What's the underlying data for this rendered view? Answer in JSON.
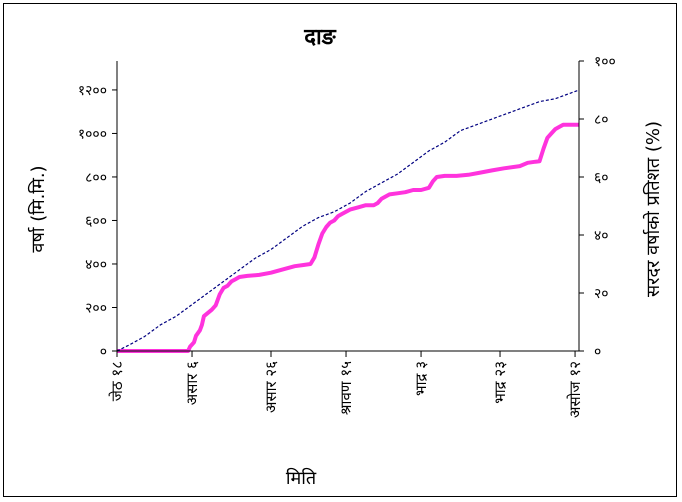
{
  "chart_data": {
    "type": "line",
    "title": "दाङ",
    "xlabel": "मिति",
    "ylabel_left": "वर्षा (मि.मि.)",
    "ylabel_right": "सरदर वर्षाको प्रतिशत (%)",
    "x_tick_labels": [
      "जेठ १८",
      "असार ६",
      "असार २६",
      "श्रावण १५",
      "भाद्र ३",
      "भाद्र २३",
      "असोज १२"
    ],
    "x_tick_day_offsets": [
      0,
      19,
      39,
      58,
      77,
      97,
      116
    ],
    "y_left": {
      "min": 0,
      "max": 1333,
      "ticks": [
        0,
        200,
        400,
        600,
        800,
        1000,
        1200
      ],
      "tick_labels": [
        "०",
        "२००",
        "४००",
        "६००",
        "८००",
        "१०००",
        "१२००"
      ]
    },
    "y_right": {
      "min": 0,
      "max": 100,
      "ticks": [
        0,
        20,
        40,
        60,
        80,
        100
      ],
      "tick_labels": [
        "०",
        "२०",
        "४०",
        "६०",
        "८०",
        "१००"
      ]
    },
    "grid": false,
    "legend": "none",
    "series": [
      {
        "axis": "left",
        "color": "#ff33dd",
        "style": "solid-thick",
        "points": [
          [
            0,
            0
          ],
          [
            18,
            0
          ],
          [
            18.5,
            20
          ],
          [
            19.5,
            40
          ],
          [
            20,
            70
          ],
          [
            21,
            95
          ],
          [
            21.5,
            120
          ],
          [
            22,
            160
          ],
          [
            24,
            190
          ],
          [
            25,
            210
          ],
          [
            26,
            260
          ],
          [
            27,
            290
          ],
          [
            28,
            300
          ],
          [
            29,
            320
          ],
          [
            30,
            330
          ],
          [
            31,
            340
          ],
          [
            33,
            345
          ],
          [
            36,
            350
          ],
          [
            39,
            360
          ],
          [
            42,
            375
          ],
          [
            45,
            390
          ],
          [
            47,
            395
          ],
          [
            49,
            400
          ],
          [
            50,
            430
          ],
          [
            51,
            490
          ],
          [
            52,
            540
          ],
          [
            53,
            570
          ],
          [
            54,
            590
          ],
          [
            55,
            600
          ],
          [
            56,
            620
          ],
          [
            57,
            630
          ],
          [
            59,
            650
          ],
          [
            61,
            660
          ],
          [
            63,
            670
          ],
          [
            65,
            670
          ],
          [
            66,
            680
          ],
          [
            67,
            700
          ],
          [
            69,
            720
          ],
          [
            71,
            725
          ],
          [
            73,
            730
          ],
          [
            75,
            740
          ],
          [
            77,
            740
          ],
          [
            79,
            750
          ],
          [
            80,
            780
          ],
          [
            81,
            800
          ],
          [
            83,
            805
          ],
          [
            86,
            805
          ],
          [
            89,
            810
          ],
          [
            92,
            820
          ],
          [
            95,
            830
          ],
          [
            98,
            840
          ],
          [
            102,
            850
          ],
          [
            104,
            865
          ],
          [
            106,
            870
          ],
          [
            107,
            872
          ],
          [
            108,
            930
          ],
          [
            109,
            980
          ],
          [
            110,
            1000
          ],
          [
            111,
            1020
          ],
          [
            112,
            1030
          ],
          [
            113,
            1040
          ],
          [
            117,
            1040
          ]
        ]
      },
      {
        "axis": "right",
        "color": "#000080",
        "style": "dashed",
        "points": [
          [
            0,
            0
          ],
          [
            3,
            2
          ],
          [
            7,
            5
          ],
          [
            11,
            9
          ],
          [
            15,
            12
          ],
          [
            19,
            16
          ],
          [
            23,
            20
          ],
          [
            27,
            24
          ],
          [
            31,
            28
          ],
          [
            35,
            32
          ],
          [
            39,
            35
          ],
          [
            43,
            39
          ],
          [
            47,
            43
          ],
          [
            51,
            46
          ],
          [
            55,
            48
          ],
          [
            59,
            51
          ],
          [
            63,
            55
          ],
          [
            67,
            58
          ],
          [
            71,
            61
          ],
          [
            75,
            65
          ],
          [
            79,
            69
          ],
          [
            83,
            72
          ],
          [
            87,
            76
          ],
          [
            91,
            78
          ],
          [
            95,
            80
          ],
          [
            99,
            82
          ],
          [
            103,
            84
          ],
          [
            107,
            86
          ],
          [
            111,
            87
          ],
          [
            115,
            89
          ],
          [
            117,
            90
          ]
        ]
      }
    ]
  }
}
